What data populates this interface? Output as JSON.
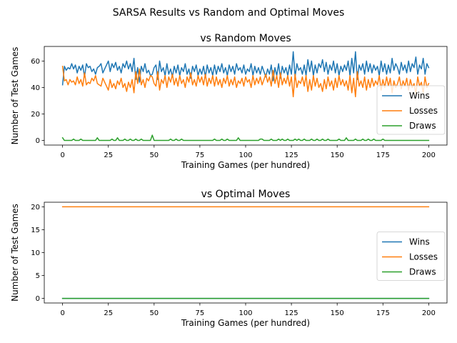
{
  "figure": {
    "suptitle": "SARSA Results vs Random and Optimal Moves"
  },
  "colors": {
    "wins": "#1f77b4",
    "losses": "#ff7f0e",
    "draws": "#2ca02c",
    "axis": "#000000",
    "legend_border": "#cccccc"
  },
  "chart_data": [
    {
      "type": "line",
      "title": "vs Random Moves",
      "xlabel": "Training Games (per hundred)",
      "ylabel": "Number of Test Games",
      "xlim": [
        -10,
        210
      ],
      "ylim": [
        -3.5,
        71
      ],
      "xticks": [
        0,
        25,
        50,
        75,
        100,
        125,
        150,
        175,
        200
      ],
      "yticks": [
        0,
        20,
        40,
        60
      ],
      "grid": false,
      "legend": "right",
      "x": {
        "start": 0,
        "end": 200,
        "step": 1
      },
      "series": [
        {
          "name": "Wins",
          "color_key": "wins",
          "values": [
            42,
            56,
            53,
            55,
            54,
            58,
            54,
            57,
            51,
            56,
            53,
            57,
            48,
            58,
            55,
            56,
            52,
            54,
            50,
            55,
            56,
            58,
            51,
            54,
            57,
            60,
            52,
            58,
            55,
            59,
            53,
            56,
            51,
            58,
            55,
            60,
            54,
            58,
            52,
            62,
            46,
            55,
            44,
            56,
            52,
            58,
            51,
            53,
            49,
            50,
            55,
            57,
            46,
            60,
            52,
            55,
            49,
            58,
            50,
            54,
            48,
            56,
            51,
            57,
            49,
            55,
            52,
            58,
            50,
            54,
            47,
            56,
            52,
            57,
            49,
            54,
            50,
            56,
            48,
            57,
            51,
            55,
            49,
            57,
            50,
            56,
            52,
            58,
            51,
            55,
            49,
            57,
            52,
            56,
            50,
            58,
            53,
            55,
            51,
            57,
            50,
            54,
            52,
            58,
            49,
            56,
            51,
            55,
            50,
            56,
            52,
            48,
            54,
            50,
            57,
            45,
            55,
            49,
            58,
            47,
            56,
            51,
            55,
            49,
            57,
            50,
            67,
            48,
            58,
            53,
            55,
            50,
            57,
            49,
            61,
            52,
            60,
            49,
            57,
            51,
            58,
            55,
            61,
            52,
            59,
            50,
            57,
            53,
            60,
            51,
            58,
            49,
            56,
            52,
            57,
            53,
            60,
            49,
            62,
            51,
            67,
            46,
            57,
            53,
            58,
            50,
            60,
            52,
            58,
            51,
            57,
            53,
            56,
            49,
            60,
            52,
            58,
            50,
            57,
            51,
            62,
            53,
            58,
            55,
            50,
            59,
            53,
            57,
            51,
            60,
            52,
            58,
            55,
            63,
            50,
            57,
            54,
            62,
            50,
            58,
            55
          ]
        },
        {
          "name": "Losses",
          "color_key": "losses",
          "values": [
            56,
            45,
            46,
            42,
            46,
            44,
            45,
            42,
            48,
            43,
            46,
            41,
            51,
            42,
            44,
            43,
            47,
            45,
            49,
            43,
            42,
            41,
            47,
            44,
            41,
            38,
            46,
            40,
            43,
            39,
            45,
            42,
            47,
            40,
            43,
            37,
            44,
            40,
            46,
            36,
            52,
            43,
            54,
            42,
            46,
            40,
            47,
            45,
            49,
            48,
            43,
            41,
            52,
            38,
            46,
            43,
            49,
            40,
            48,
            44,
            50,
            42,
            47,
            41,
            49,
            43,
            46,
            40,
            48,
            44,
            51,
            42,
            46,
            41,
            49,
            44,
            48,
            42,
            50,
            41,
            47,
            43,
            49,
            41,
            48,
            42,
            46,
            40,
            47,
            43,
            49,
            41,
            46,
            42,
            48,
            40,
            45,
            43,
            47,
            41,
            48,
            44,
            46,
            40,
            49,
            42,
            47,
            43,
            48,
            42,
            46,
            50,
            44,
            48,
            41,
            53,
            43,
            49,
            40,
            51,
            42,
            47,
            43,
            49,
            41,
            48,
            33,
            50,
            40,
            45,
            43,
            48,
            41,
            49,
            37,
            46,
            38,
            49,
            41,
            47,
            40,
            43,
            37,
            46,
            39,
            48,
            41,
            45,
            38,
            47,
            40,
            49,
            42,
            46,
            41,
            45,
            38,
            49,
            36,
            47,
            33,
            52,
            41,
            45,
            40,
            48,
            38,
            46,
            40,
            47,
            41,
            45,
            42,
            49,
            38,
            46,
            40,
            48,
            41,
            47,
            36,
            45,
            40,
            43,
            48,
            39,
            45,
            41,
            47,
            38,
            46,
            40,
            43,
            35,
            48,
            41,
            44,
            36,
            48,
            40,
            43
          ]
        },
        {
          "name": "Draws",
          "color_key": "draws",
          "values": [
            2,
            0,
            0,
            0,
            0,
            0,
            1,
            0,
            0,
            0,
            1,
            0,
            0,
            0,
            0,
            0,
            0,
            0,
            0,
            2,
            0,
            0,
            0,
            0,
            0,
            0,
            0,
            1,
            0,
            0,
            2,
            0,
            0,
            0,
            1,
            0,
            0,
            1,
            0,
            0,
            1,
            0,
            0,
            1,
            0,
            0,
            0,
            0,
            0,
            4,
            0,
            0,
            0,
            0,
            0,
            0,
            0,
            0,
            0,
            1,
            0,
            0,
            1,
            0,
            0,
            1,
            0,
            0,
            0,
            0,
            0,
            0,
            0,
            0,
            0,
            0,
            0,
            0,
            0,
            0,
            0,
            0,
            0,
            1,
            0,
            0,
            0,
            1,
            0,
            0,
            1,
            0,
            0,
            0,
            0,
            0,
            2,
            0,
            0,
            0,
            0,
            0,
            0,
            0,
            0,
            0,
            0,
            0,
            1,
            1,
            0,
            0,
            0,
            0,
            1,
            0,
            0,
            0,
            1,
            0,
            1,
            0,
            0,
            1,
            0,
            0,
            0,
            1,
            0,
            1,
            0,
            0,
            1,
            0,
            0,
            0,
            1,
            0,
            0,
            1,
            0,
            0,
            1,
            0,
            0,
            1,
            0,
            0,
            0,
            0,
            0,
            1,
            0,
            0,
            0,
            2,
            0,
            0,
            0,
            0,
            1,
            0,
            0,
            0,
            1,
            0,
            0,
            1,
            0,
            0,
            1,
            0,
            0,
            0,
            0,
            1,
            0,
            0,
            0,
            0,
            0,
            0,
            0,
            0,
            0,
            0,
            0,
            0,
            0,
            0,
            0,
            0,
            0,
            0,
            0,
            0,
            0,
            0,
            0,
            0,
            0
          ]
        }
      ]
    },
    {
      "type": "line",
      "title": "vs Optimal Moves",
      "xlabel": "Training Games (per hundred)",
      "ylabel": "Number of Test Games",
      "xlim": [
        -10,
        210
      ],
      "ylim": [
        -1,
        21
      ],
      "xticks": [
        0,
        25,
        50,
        75,
        100,
        125,
        150,
        175,
        200
      ],
      "yticks": [
        0,
        5,
        10,
        15,
        20
      ],
      "grid": false,
      "legend": "right",
      "x": {
        "start": 0,
        "end": 200,
        "step": 1
      },
      "series": [
        {
          "name": "Wins",
          "color_key": "wins",
          "constant": 0
        },
        {
          "name": "Losses",
          "color_key": "losses",
          "constant": 20
        },
        {
          "name": "Draws",
          "color_key": "draws",
          "constant": 0
        }
      ]
    }
  ]
}
